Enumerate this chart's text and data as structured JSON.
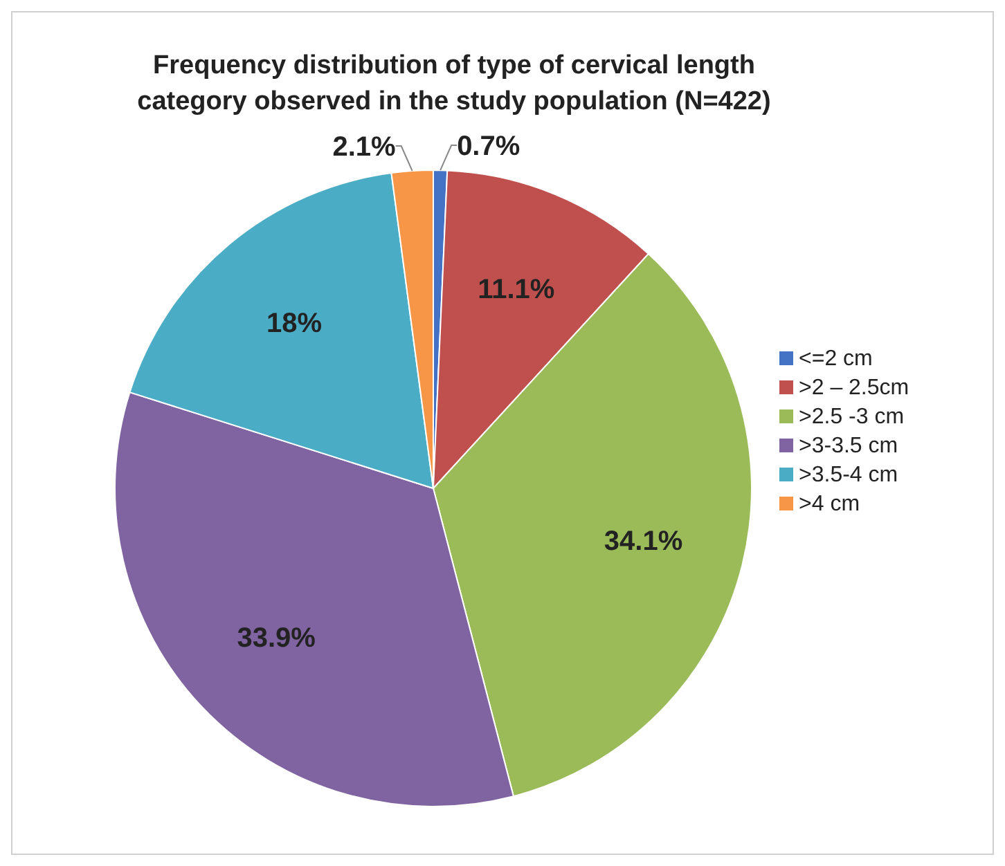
{
  "chart_data": {
    "type": "pie",
    "title": "Frequency distribution of type of cervical length category observed in the study population (N=422)",
    "categories": [
      "<=2 cm",
      ">2 – 2.5cm",
      ">2.5 -3 cm",
      ">3-3.5 cm",
      ">3.5-4 cm",
      ">4 cm"
    ],
    "values": [
      0.7,
      11.1,
      34.1,
      33.9,
      18,
      2.1
    ],
    "value_labels": [
      "0.7%",
      "11.1%",
      "34.1%",
      "33.9%",
      "18%",
      "2.1%"
    ],
    "colors": [
      "#4472c4",
      "#c0504d",
      "#9bbb59",
      "#8064a2",
      "#4bacc6",
      "#f79646"
    ],
    "legend": "right"
  }
}
